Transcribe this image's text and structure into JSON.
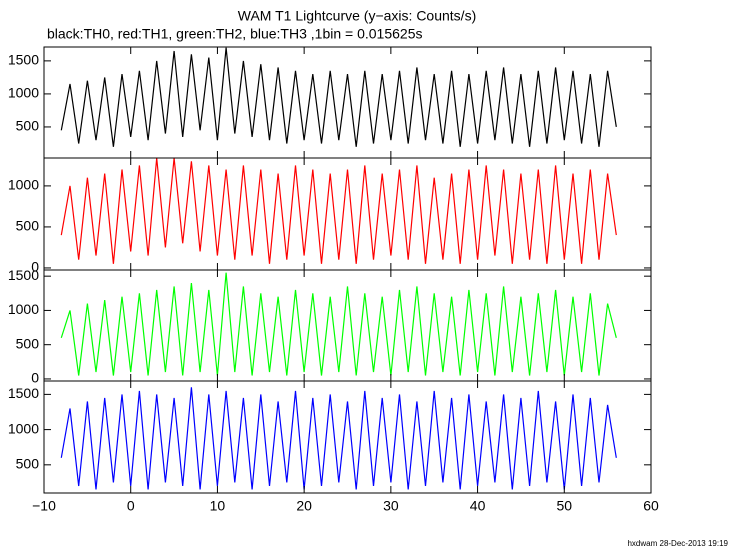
{
  "header": {
    "title": "WAM T1 Lightcurve (y−axis: Counts/s)",
    "subtitle": "black:TH0, red:TH1, green:TH2, blue:TH3 ,1bin = 0.015625s",
    "footer": "hxdwam 28-Dec-2013 19:19"
  },
  "chart_data": [
    {
      "type": "line",
      "xlim": [
        -10,
        60
      ],
      "xticks": [
        {
          "value": -10,
          "label": "−10"
        },
        0,
        10,
        20,
        30,
        40,
        50,
        60
      ],
      "ylim": [
        30,
        1710
      ],
      "yticks": [
        500,
        1000,
        1500
      ],
      "x": [
        -8,
        -7,
        -6,
        -5,
        -4,
        -3,
        -2,
        -1,
        0,
        1,
        2,
        3,
        4,
        5,
        6,
        7,
        8,
        9,
        10,
        11,
        12,
        13,
        14,
        15,
        16,
        17,
        18,
        19,
        20,
        21,
        22,
        23,
        24,
        25,
        26,
        27,
        28,
        29,
        30,
        31,
        32,
        33,
        34,
        35,
        36,
        37,
        38,
        39,
        40,
        41,
        42,
        43,
        44,
        45,
        46,
        47,
        48,
        49,
        50,
        51,
        52,
        53,
        54,
        55,
        56
      ],
      "series": [
        {
          "color": "#000000",
          "values": [
            450,
            1150,
            250,
            1200,
            300,
            1250,
            200,
            1300,
            350,
            1350,
            300,
            1500,
            400,
            1650,
            350,
            1600,
            450,
            1550,
            300,
            1700,
            400,
            1500,
            350,
            1450,
            300,
            1400,
            250,
            1350,
            300,
            1300,
            250,
            1350,
            300,
            1300,
            200,
            1350,
            250,
            1300,
            300,
            1350,
            250,
            1400,
            300,
            1300,
            250,
            1350,
            200,
            1300,
            250,
            1350,
            300,
            1400,
            250,
            1300,
            200,
            1350,
            250,
            1400,
            300,
            1350,
            250,
            1300,
            200,
            1350,
            500
          ]
        }
      ]
    },
    {
      "type": "line",
      "xlim": [
        -10,
        60
      ],
      "xticks": [
        {
          "value": -10,
          "label": "−10"
        },
        0,
        10,
        20,
        30,
        40,
        50,
        60
      ],
      "ylim": [
        -25,
        1340
      ],
      "yticks": [
        0,
        500,
        1000
      ],
      "x": [
        -8,
        -7,
        -6,
        -5,
        -4,
        -3,
        -2,
        -1,
        0,
        1,
        2,
        3,
        4,
        5,
        6,
        7,
        8,
        9,
        10,
        11,
        12,
        13,
        14,
        15,
        16,
        17,
        18,
        19,
        20,
        21,
        22,
        23,
        24,
        25,
        26,
        27,
        28,
        29,
        30,
        31,
        32,
        33,
        34,
        35,
        36,
        37,
        38,
        39,
        40,
        41,
        42,
        43,
        44,
        45,
        46,
        47,
        48,
        49,
        50,
        51,
        52,
        53,
        54,
        55,
        56
      ],
      "series": [
        {
          "color": "#ff0000",
          "values": [
            400,
            1000,
            100,
            1100,
            150,
            1150,
            50,
            1200,
            200,
            1250,
            150,
            1340,
            250,
            1340,
            300,
            1300,
            200,
            1250,
            150,
            1200,
            100,
            1250,
            150,
            1200,
            50,
            1150,
            100,
            1250,
            150,
            1200,
            50,
            1150,
            100,
            1200,
            50,
            1250,
            100,
            1150,
            150,
            1200,
            100,
            1250,
            50,
            1100,
            100,
            1150,
            50,
            1200,
            100,
            1250,
            150,
            1200,
            50,
            1150,
            100,
            1200,
            50,
            1250,
            100,
            1150,
            50,
            1200,
            100,
            1150,
            400
          ]
        }
      ]
    },
    {
      "type": "line",
      "xlim": [
        -10,
        60
      ],
      "xticks": [
        {
          "value": -10,
          "label": "−10"
        },
        0,
        10,
        20,
        30,
        40,
        50,
        60
      ],
      "ylim": [
        -30,
        1590
      ],
      "yticks": [
        0,
        500,
        1000,
        1500
      ],
      "x": [
        -8,
        -7,
        -6,
        -5,
        -4,
        -3,
        -2,
        -1,
        0,
        1,
        2,
        3,
        4,
        5,
        6,
        7,
        8,
        9,
        10,
        11,
        12,
        13,
        14,
        15,
        16,
        17,
        18,
        19,
        20,
        21,
        22,
        23,
        24,
        25,
        26,
        27,
        28,
        29,
        30,
        31,
        32,
        33,
        34,
        35,
        36,
        37,
        38,
        39,
        40,
        41,
        42,
        43,
        44,
        45,
        46,
        47,
        48,
        49,
        50,
        51,
        52,
        53,
        54,
        55,
        56
      ],
      "series": [
        {
          "color": "#00ff00",
          "values": [
            600,
            1000,
            50,
            1100,
            100,
            1150,
            50,
            1200,
            100,
            1250,
            50,
            1300,
            100,
            1350,
            50,
            1400,
            100,
            1300,
            50,
            1550,
            100,
            1350,
            50,
            1250,
            100,
            1200,
            50,
            1300,
            100,
            1250,
            50,
            1200,
            100,
            1350,
            50,
            1250,
            100,
            1200,
            50,
            1300,
            100,
            1350,
            50,
            1250,
            100,
            1200,
            50,
            1300,
            100,
            1250,
            50,
            1350,
            100,
            1200,
            50,
            1250,
            100,
            1300,
            50,
            1200,
            100,
            1250,
            50,
            1100,
            600
          ]
        }
      ]
    },
    {
      "type": "line",
      "xlim": [
        -10,
        60
      ],
      "xticks": [
        {
          "value": -10,
          "label": "−10"
        },
        0,
        10,
        20,
        30,
        40,
        50,
        60
      ],
      "ylim": [
        100,
        1690
      ],
      "yticks": [
        500,
        1000,
        1500
      ],
      "x": [
        -8,
        -7,
        -6,
        -5,
        -4,
        -3,
        -2,
        -1,
        0,
        1,
        2,
        3,
        4,
        5,
        6,
        7,
        8,
        9,
        10,
        11,
        12,
        13,
        14,
        15,
        16,
        17,
        18,
        19,
        20,
        21,
        22,
        23,
        24,
        25,
        26,
        27,
        28,
        29,
        30,
        31,
        32,
        33,
        34,
        35,
        36,
        37,
        38,
        39,
        40,
        41,
        42,
        43,
        44,
        45,
        46,
        47,
        48,
        49,
        50,
        51,
        52,
        53,
        54,
        55,
        56
      ],
      "series": [
        {
          "color": "#0000ff",
          "values": [
            600,
            1300,
            200,
            1400,
            150,
            1450,
            250,
            1500,
            200,
            1550,
            150,
            1500,
            250,
            1450,
            200,
            1600,
            150,
            1500,
            200,
            1550,
            250,
            1450,
            150,
            1500,
            200,
            1400,
            250,
            1550,
            150,
            1450,
            200,
            1500,
            250,
            1400,
            150,
            1550,
            200,
            1450,
            250,
            1500,
            150,
            1400,
            200,
            1550,
            250,
            1450,
            150,
            1500,
            200,
            1400,
            250,
            1500,
            150,
            1450,
            200,
            1550,
            250,
            1400,
            150,
            1500,
            200,
            1450,
            250,
            1350,
            600
          ]
        }
      ]
    }
  ]
}
